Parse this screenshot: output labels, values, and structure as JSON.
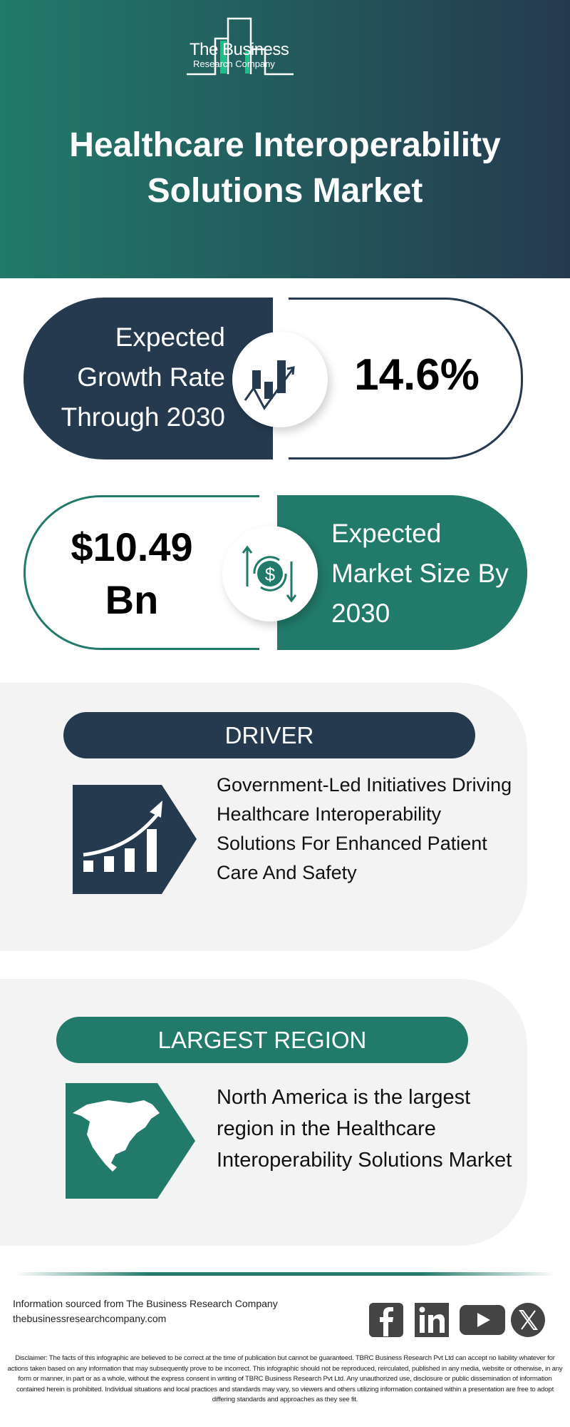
{
  "brand": {
    "line1": "The Business",
    "line2": "Research Company",
    "accent": "#1fbf8a"
  },
  "title": "Healthcare Interoperability Solutions Market",
  "colors": {
    "navy": "#253a4f",
    "teal": "#217a6a",
    "panel": "#f3f3f3"
  },
  "growth": {
    "label": "Expected Growth Rate Through 2030",
    "value": "14.6%",
    "icon": "growth-chart-icon"
  },
  "market_size": {
    "value": "$10.49 Bn",
    "label": "Expected Market Size By 2030",
    "icon": "dollar-cycle-icon"
  },
  "driver": {
    "heading": "DRIVER",
    "text": "Government-Led Initiatives Driving Healthcare Interoperability Solutions For Enhanced Patient Care And Safety",
    "icon": "rising-bar-chart-icon"
  },
  "region": {
    "heading": "LARGEST REGION",
    "text": "North America is the largest region in the Healthcare Interoperability Solutions Market",
    "icon": "north-america-map-icon"
  },
  "footer": {
    "source": "Information sourced from The Business Research Company",
    "website": "thebusinessresearchcompany.com",
    "social": [
      "facebook",
      "linkedin",
      "youtube",
      "x"
    ],
    "disclaimer": "Disclaimer: The facts of this infographic are believed to be correct at the time of publication but cannot be guaranteed. TBRC Business Research Pvt Ltd can accept no liability whatever for actions taken based on any information that may subsequently prove to be incorrect. This infographic should not be reproduced, reirculated, published in any media, website or otherwise, in any form or manner, in part or as a whole, without the express consent in writing of TBRC Business Research Pvt Ltd. Any unauthorized use, disclosure or public dissemination of information contained herein is prohibited. Individual situations and local practices and standards may vary, so viewers and others utilizing information contained within a presentation are free to adopt differing standards and approaches as they see fit."
  }
}
